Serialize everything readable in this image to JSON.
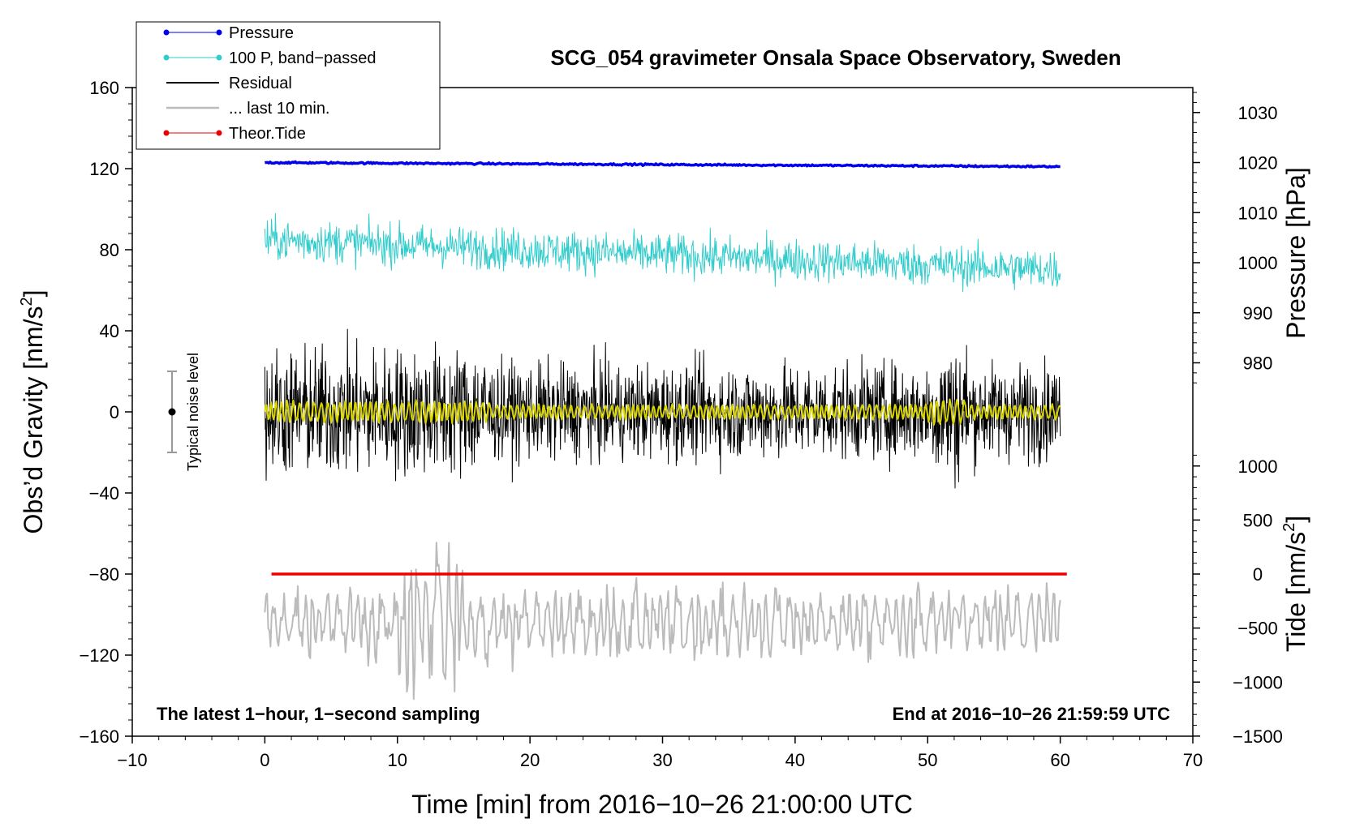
{
  "chart_data": {
    "type": "line",
    "title": "SCG_054 gravimeter Onsala Space Observatory, Sweden",
    "xlabel": "Time [min] from 2016−10−26 21:00:00 UTC",
    "ylabel_left": "Obs’d Gravity [nm/s",
    "ylabel_left_sup": "2",
    "ylabel_left_end": "]",
    "ylabel_right_top": "Pressure [hPa]",
    "ylabel_right_bottom": "Tide [nm/s",
    "ylabel_right_bottom_sup": "2",
    "ylabel_right_bottom_end": "]",
    "xlim": [
      -10,
      70
    ],
    "ylim_left": [
      -160,
      160
    ],
    "x_ticks": [
      -10,
      0,
      10,
      20,
      30,
      40,
      50,
      60,
      70
    ],
    "x_tick_labels": [
      "−10",
      "0",
      "10",
      "20",
      "30",
      "40",
      "50",
      "60",
      "70"
    ],
    "y_left_ticks": [
      160,
      120,
      80,
      40,
      0,
      -40,
      -80,
      -120,
      -160
    ],
    "y_left_tick_labels": [
      "160",
      "120",
      "80",
      "40",
      "0",
      "−40",
      "−80",
      "−120",
      "−160"
    ],
    "pressure_axis": {
      "ticks": [
        1030,
        1020,
        1010,
        1000,
        990,
        980
      ],
      "tick_labels": [
        "1030",
        "1020",
        "1010",
        "1000",
        "990",
        "980"
      ],
      "gravity_at_1020": 123,
      "gravity_per_hpa": 2.47
    },
    "tide_axis": {
      "ticks": [
        1000,
        500,
        0,
        -500,
        -1000,
        -1500
      ],
      "tick_labels": [
        "1000",
        "500",
        "0",
        "−500",
        "−1000",
        "−1500"
      ],
      "gravity_at_zero": -80,
      "gravity_per_unit": 0.0533
    },
    "series": [
      {
        "name": "Pressure",
        "color": "#0000ee",
        "x_range": [
          0,
          60
        ],
        "start": 123,
        "end": 121,
        "noise": 0.3
      },
      {
        "name": "100 P, band−passed",
        "color": "#33cccc",
        "x_range": [
          0,
          60
        ],
        "start": 85,
        "end": 70,
        "amplitude": 9
      },
      {
        "name": "Residual",
        "color": "#000000",
        "x_range": [
          0,
          60
        ],
        "center": 0,
        "amplitude": 22
      },
      {
        "name": "... last 10 min.",
        "color": "#bbbbbb",
        "x_range": [
          0,
          60
        ],
        "center": -104,
        "amplitude": 20
      },
      {
        "name": "Theor.Tide",
        "color": "#ee0000",
        "x_range": [
          0.5,
          60.5
        ],
        "start": -80,
        "end": -80
      }
    ],
    "residual_smoothed_color": "#d8d400",
    "legend": {
      "location": "top-left",
      "entries": [
        "Pressure",
        "100 P, band−passed",
        "Residual",
        "... last 10 min.",
        "Theor.Tide"
      ]
    },
    "noise_bar": {
      "label": "Typical noise level",
      "x": -7,
      "center": 0,
      "half_range": 20
    },
    "annotation_left": "The latest 1−hour, 1−second sampling",
    "annotation_right": "End at 2016−10−26 21:59:59 UTC"
  }
}
